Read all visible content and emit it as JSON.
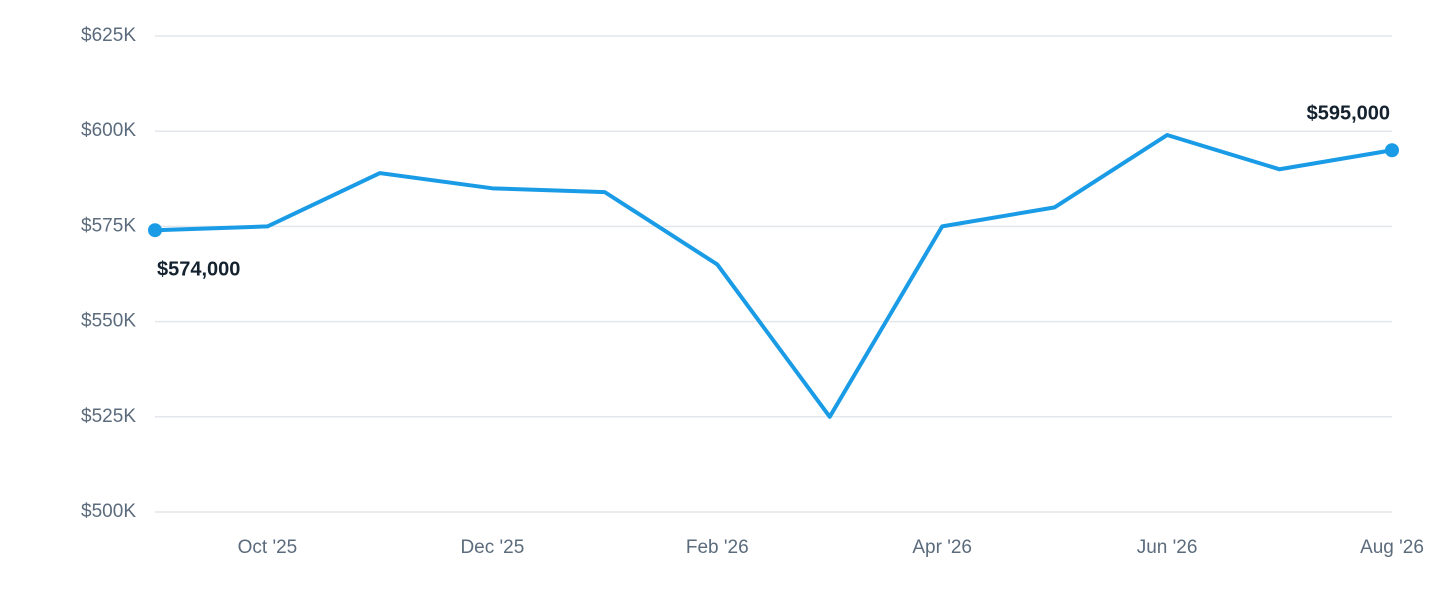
{
  "chart_data": {
    "type": "line",
    "categories": [
      null,
      "Oct '25",
      null,
      "Dec '25",
      null,
      "Feb '26",
      null,
      "Apr '26",
      null,
      "Jun '26",
      null,
      "Aug '26"
    ],
    "series": [
      {
        "color": "#1a9be6",
        "values": [
          574000,
          575000,
          589000,
          585000,
          584000,
          565000,
          525000,
          575000,
          580000,
          599000,
          590000,
          595000
        ],
        "value_labels": [
          "$574,000",
          null,
          null,
          null,
          null,
          null,
          null,
          null,
          null,
          null,
          null,
          "$595,000"
        ]
      }
    ],
    "ylim": [
      500000,
      625000
    ],
    "yticks": [
      {
        "value": 500000,
        "label": "$500K"
      },
      {
        "value": 525000,
        "label": "$525K"
      },
      {
        "value": 550000,
        "label": "$550K"
      },
      {
        "value": 575000,
        "label": "$575K"
      },
      {
        "value": 600000,
        "label": "$600K"
      },
      {
        "value": 625000,
        "label": "$625K"
      }
    ],
    "grid": true
  }
}
